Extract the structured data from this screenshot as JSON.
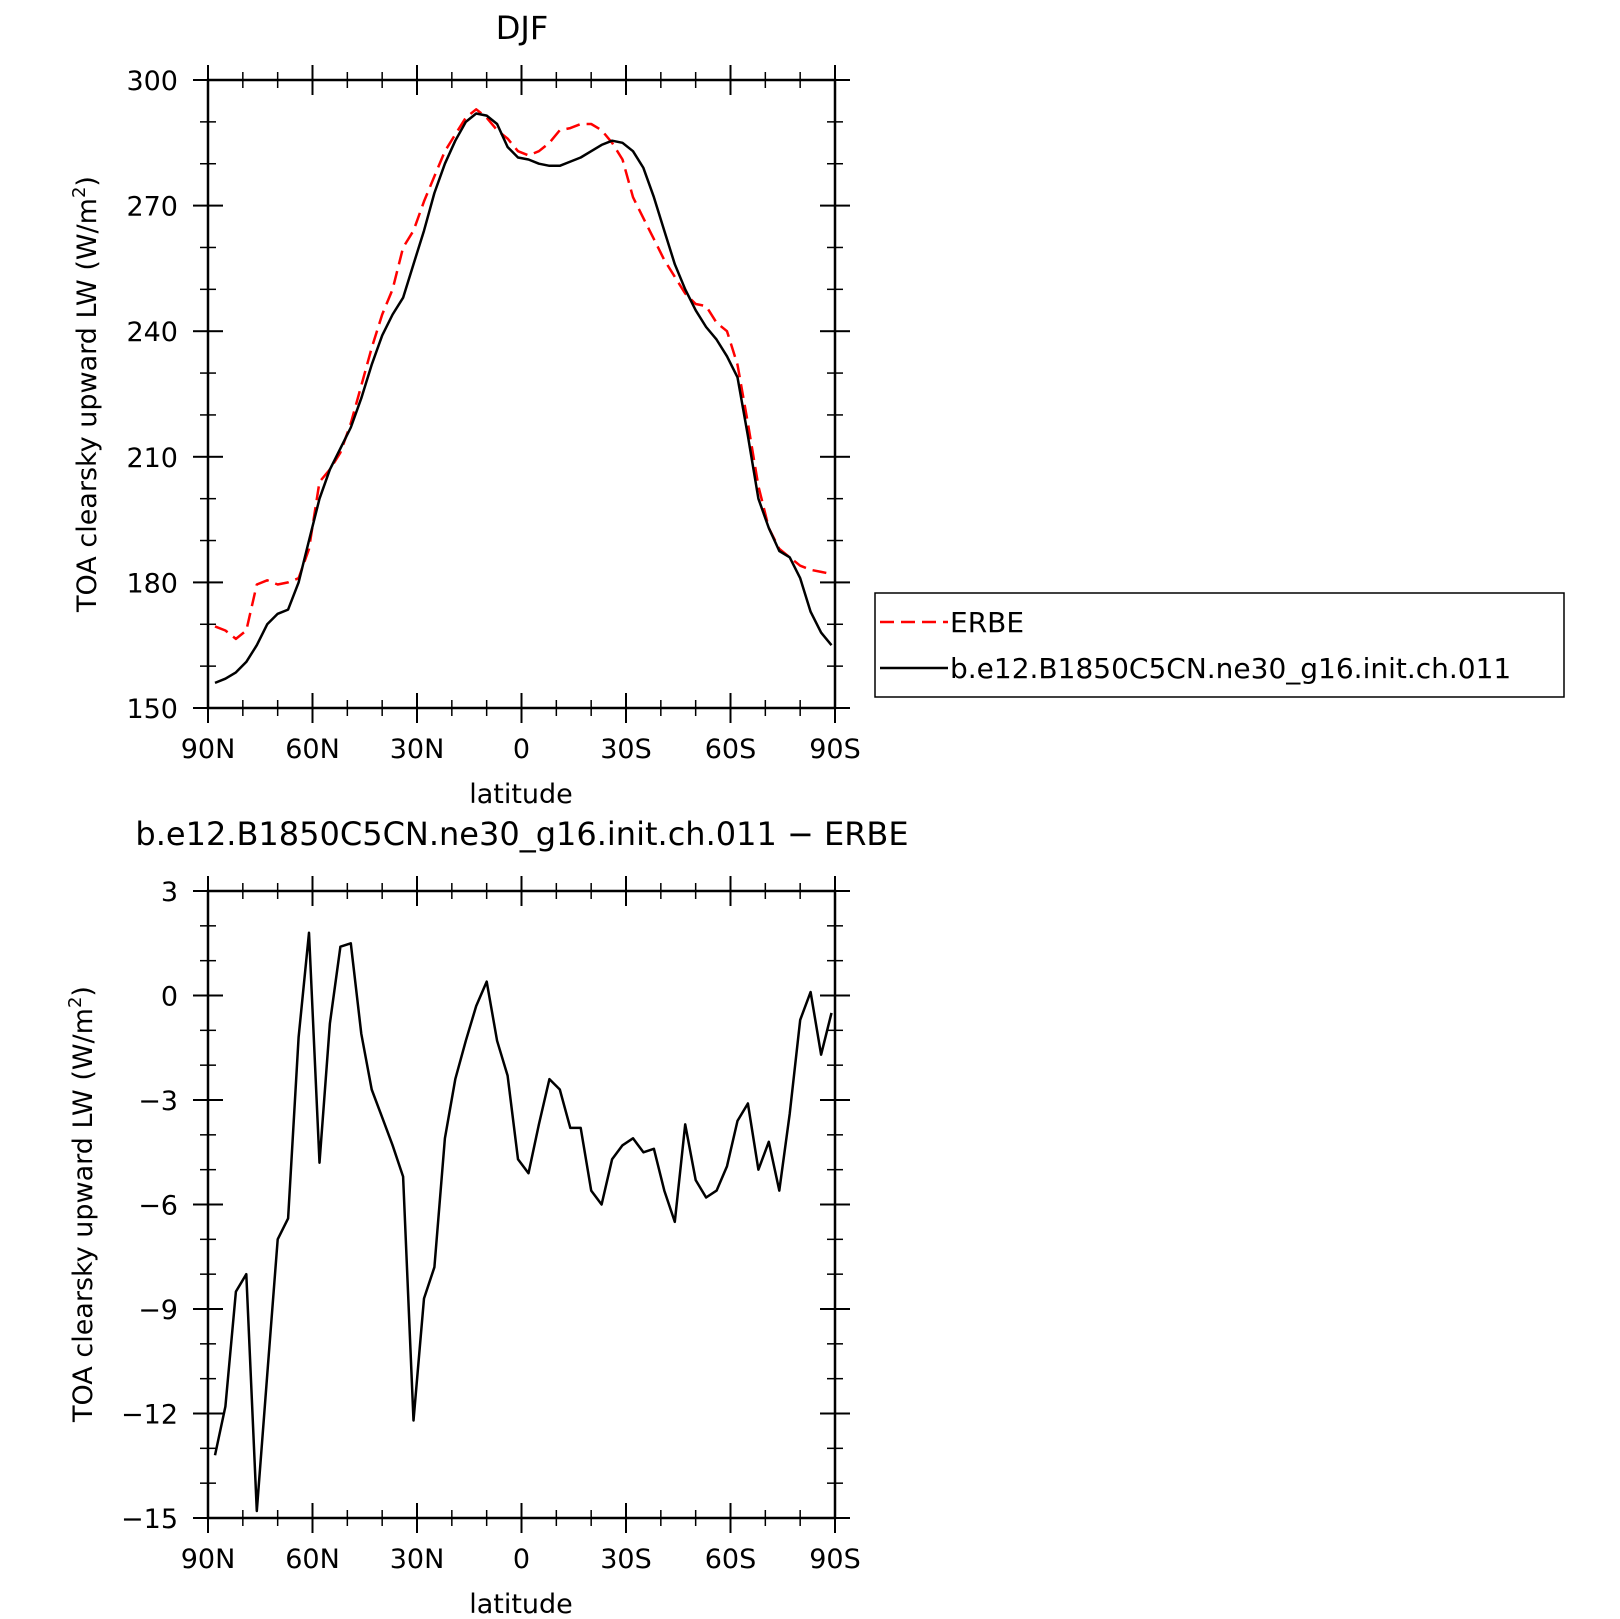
{
  "chart_data": [
    {
      "type": "line",
      "title": "DJF",
      "xlabel": "latitude",
      "ylabel": "TOA clearsky upward LW (W/m²)",
      "ylabel_main": "TOA clearsky upward LW (W/m",
      "ylabel_sup": "2",
      "ylabel_close": ")",
      "xlim": [
        90,
        -90
      ],
      "ylim": [
        150,
        300
      ],
      "xticks": [
        90,
        60,
        30,
        0,
        -30,
        -60,
        -90
      ],
      "xtick_labels": [
        "90N",
        "60N",
        "30N",
        "0",
        "30S",
        "60S",
        "90S"
      ],
      "yticks": [
        150,
        180,
        210,
        240,
        270,
        300
      ],
      "ytick_labels": [
        "150",
        "180",
        "210",
        "240",
        "270",
        "300"
      ],
      "legend": "right",
      "series": [
        {
          "name": "ERBE",
          "color": "#ff0000",
          "dash": true,
          "x": [
            88,
            85,
            82,
            79,
            76,
            73,
            70,
            67,
            64,
            61,
            58,
            55,
            52,
            49,
            46,
            43,
            40,
            37,
            34,
            31,
            28,
            25,
            22,
            19,
            16,
            13,
            10,
            7,
            4,
            1,
            -2,
            -5,
            -8,
            -11,
            -14,
            -17,
            -20,
            -23,
            -26,
            -29,
            -32,
            -35,
            -38,
            -41,
            -44,
            -47,
            -50,
            -53,
            -56,
            -59,
            -62,
            -65,
            -68,
            -71,
            -74,
            -77,
            -80,
            -83,
            -86,
            -89
          ],
          "y": [
            169.5,
            168.5,
            166.5,
            168.5,
            179.5,
            180.5,
            179.5,
            180,
            181,
            188,
            204,
            207,
            211,
            218,
            227,
            236,
            244,
            250,
            260,
            264,
            271,
            277,
            283,
            287,
            291,
            293,
            291,
            288,
            286,
            283,
            282,
            283,
            285,
            288,
            288.5,
            289.5,
            289.5,
            288,
            285,
            281,
            272,
            267,
            262,
            257,
            253,
            249,
            246.5,
            246,
            242,
            240,
            232,
            218,
            203,
            193,
            188,
            186,
            184,
            183,
            182.5,
            182
          ]
        },
        {
          "name": "b.e12.B1850C5CN.ne30_g16.init.ch.011",
          "color": "#000000",
          "dash": false,
          "x": [
            88,
            85,
            82,
            79,
            76,
            73,
            70,
            67,
            64,
            61,
            58,
            55,
            52,
            49,
            46,
            43,
            40,
            37,
            34,
            31,
            28,
            25,
            22,
            19,
            16,
            13,
            10,
            7,
            4,
            1,
            -2,
            -5,
            -8,
            -11,
            -14,
            -17,
            -20,
            -23,
            -26,
            -29,
            -32,
            -35,
            -38,
            -41,
            -44,
            -47,
            -50,
            -53,
            -56,
            -59,
            -62,
            -65,
            -68,
            -71,
            -74,
            -77,
            -80,
            -83,
            -86,
            -89
          ],
          "y": [
            156,
            157,
            158.5,
            161,
            165,
            170,
            172.5,
            173.5,
            180,
            190,
            200,
            207,
            212,
            217,
            224,
            232,
            239,
            244,
            248,
            256,
            264,
            273,
            280,
            285.5,
            290,
            292,
            291.5,
            289.5,
            284,
            281.5,
            281,
            280,
            279.5,
            279.5,
            280.5,
            281.5,
            283,
            284.5,
            285.5,
            285,
            283,
            279,
            272,
            264,
            256,
            250,
            245,
            241,
            238,
            234,
            229,
            215,
            200,
            193,
            187.5,
            186,
            181,
            173,
            168,
            165
          ]
        }
      ]
    },
    {
      "type": "line",
      "title": "b.e12.B1850C5CN.ne30_g16.init.ch.011 − ERBE",
      "xlabel": "latitude",
      "ylabel": "TOA clearsky upward LW (W/m²)",
      "ylabel_main": "TOA clearsky upward LW (W/m",
      "ylabel_sup": "2",
      "ylabel_close": ")",
      "xlim": [
        90,
        -90
      ],
      "ylim": [
        -15,
        3
      ],
      "xticks": [
        90,
        60,
        30,
        0,
        -30,
        -60,
        -90
      ],
      "xtick_labels": [
        "90N",
        "60N",
        "30N",
        "0",
        "30S",
        "60S",
        "90S"
      ],
      "yticks": [
        -15,
        -12,
        -9,
        -6,
        -3,
        0,
        3
      ],
      "ytick_labels": [
        "−15",
        "−12",
        "−9",
        "−6",
        "−3",
        "0",
        "3"
      ],
      "series": [
        {
          "color": "#000000",
          "dash": false,
          "x": [
            88,
            85,
            82,
            79,
            76,
            73,
            70,
            67,
            64,
            61,
            58,
            55,
            52,
            49,
            46,
            43,
            40,
            37,
            34,
            31,
            28,
            25,
            22,
            19,
            16,
            13,
            10,
            7,
            4,
            1,
            -2,
            -5,
            -8,
            -11,
            -14,
            -17,
            -20,
            -23,
            -26,
            -29,
            -32,
            -35,
            -38,
            -41,
            -44,
            -47,
            -50,
            -53,
            -56,
            -59,
            -62,
            -65,
            -68,
            -71,
            -74,
            -77,
            -80,
            -83,
            -86,
            -89
          ],
          "y": [
            -13.2,
            -11.8,
            -8.5,
            -8,
            -14.8,
            -10.9,
            -7,
            -6.4,
            -1.2,
            1.8,
            -4.8,
            -0.8,
            1.4,
            1.5,
            -1.1,
            -2.7,
            -3.5,
            -4.3,
            -5.2,
            -12.2,
            -8.7,
            -7.8,
            -4.1,
            -2.4,
            -1.3,
            -0.3,
            0.4,
            -1.3,
            -2.3,
            -4.7,
            -5.1,
            -3.7,
            -2.4,
            -2.7,
            -3.8,
            -3.8,
            -5.6,
            -6,
            -4.7,
            -4.3,
            -4.1,
            -4.5,
            -4.4,
            -5.6,
            -6.5,
            -3.7,
            -5.3,
            -5.8,
            -5.6,
            -4.9,
            -3.6,
            -3.1,
            -5,
            -4.2,
            -5.6,
            -3.4,
            -0.7,
            0.1,
            -1.7,
            -0.5
          ]
        }
      ]
    }
  ]
}
